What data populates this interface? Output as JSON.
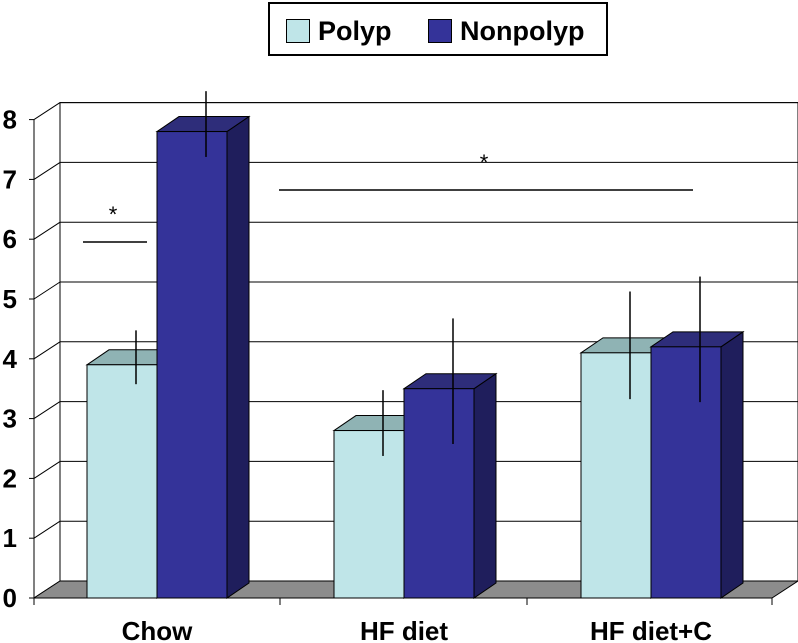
{
  "chart_data": {
    "type": "bar",
    "title": "",
    "xlabel": "",
    "ylabel": "",
    "categories": [
      "Chow",
      "HF diet",
      "HF diet+C"
    ],
    "ylim": [
      0,
      8
    ],
    "yticks": [
      "0",
      "1",
      "2",
      "3",
      "4",
      "5",
      "6",
      "7",
      "8"
    ],
    "grid": true,
    "legend_position": "top-center",
    "series": [
      {
        "name": "Polyp",
        "color": "#bfe5e8",
        "values": [
          3.9,
          2.8,
          4.1
        ],
        "errors": [
          0.45,
          0.55,
          0.9
        ]
      },
      {
        "name": "Nonpolyp",
        "color": "#343399",
        "values": [
          7.8,
          3.5,
          4.2
        ],
        "errors": [
          0.55,
          1.05,
          1.05
        ]
      }
    ],
    "annotations": [
      {
        "label": "*",
        "meaning": "significant difference within Chow"
      },
      {
        "label": "*",
        "meaning": "significant difference across diets"
      }
    ]
  }
}
